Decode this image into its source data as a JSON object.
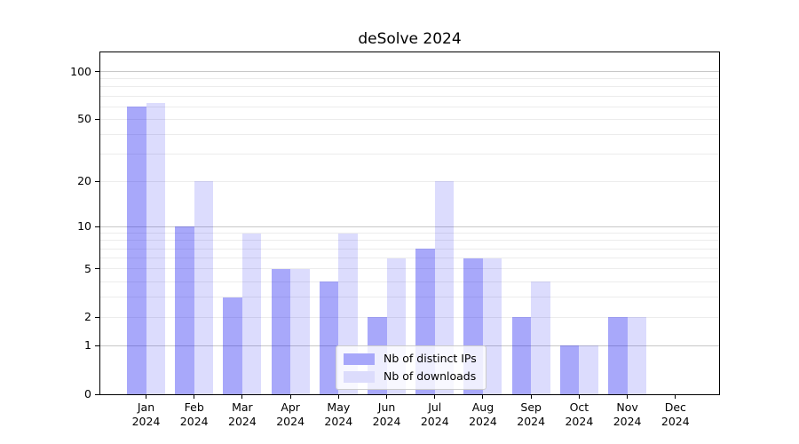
{
  "chart_data": {
    "type": "bar",
    "title": "deSolve 2024",
    "categories": [
      "Jan",
      "Feb",
      "Mar",
      "Apr",
      "May",
      "Jun",
      "Jul",
      "Aug",
      "Sep",
      "Oct",
      "Nov",
      "Dec"
    ],
    "year_label": "2024",
    "series": [
      {
        "name": "Nb of distinct IPs",
        "color": "#a7a7fa",
        "fill": "rgba(13,13,242,0.36)",
        "values": [
          60,
          10,
          3,
          5,
          4,
          2,
          7,
          6,
          2,
          1,
          2,
          0
        ]
      },
      {
        "name": "Nb of downloads",
        "color": "#dcdcfc",
        "fill": "rgba(13,13,242,0.145)",
        "values": [
          63,
          20,
          9,
          5,
          9,
          6,
          20,
          6,
          4,
          1,
          2,
          0
        ]
      }
    ],
    "xlabel": "",
    "ylabel": "",
    "y_axis": {
      "scale": "log10(value+1)",
      "ticks": [
        0,
        1,
        2,
        5,
        10,
        20,
        50,
        100
      ],
      "major_gridlines": [
        1,
        10,
        100
      ],
      "minor_gridlines": [
        2,
        3,
        4,
        5,
        6,
        7,
        8,
        9,
        20,
        30,
        40,
        50,
        60,
        70,
        80,
        90
      ],
      "ylim": [
        0,
        131
      ],
      "grid": "on"
    },
    "legend": {
      "position": "lower center",
      "entries": [
        "Nb of distinct IPs",
        "Nb of downloads"
      ]
    },
    "colors": {
      "background": "#ffffff",
      "axis": "#000000",
      "grid_minor": "#ececec",
      "grid_major": "#c8c8c8",
      "legend_border": "#cccccc"
    }
  }
}
